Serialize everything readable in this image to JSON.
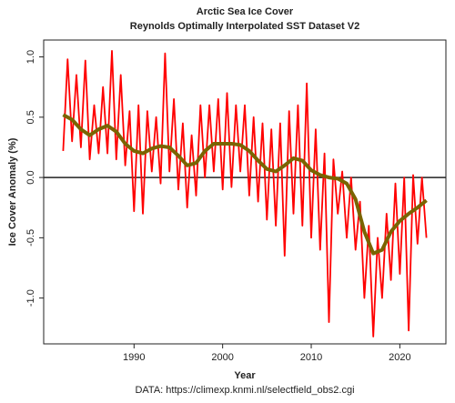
{
  "chart_data": {
    "type": "line",
    "title": "Arctic Sea Ice Cover",
    "subtitle": "Reynolds Optimally Interpolated SST Dataset V2",
    "xlabel": "Year",
    "ylabel": "Ice Cover Anomaly (%)",
    "note": "DATA: https://climexp.knmi.nl/selectfield_obs2.cgi",
    "xlim": [
      1979.8,
      2025.2
    ],
    "ylim": [
      -1.38,
      1.14
    ],
    "xticks": [
      1990,
      2000,
      2010,
      2020
    ],
    "yticks": [
      {
        "value": 1,
        "label": "1.0"
      },
      {
        "value": 0.5,
        "label": "0.5"
      },
      {
        "value": 0,
        "label": "0.0"
      },
      {
        "value": -0.5,
        "label": "-0.5"
      },
      {
        "value": -1,
        "label": "-1.0"
      }
    ],
    "zero_line": 0,
    "series": [
      {
        "color": "#ff0000",
        "x": [
          1982.0,
          1982.5,
          1983.0,
          1983.5,
          1984.0,
          1984.5,
          1985.0,
          1985.5,
          1986.0,
          1986.5,
          1987.0,
          1987.5,
          1988.0,
          1988.5,
          1989.0,
          1989.5,
          1990.0,
          1990.5,
          1991.0,
          1991.5,
          1992.0,
          1992.5,
          1993.0,
          1993.5,
          1994.0,
          1994.5,
          1995.0,
          1995.5,
          1996.0,
          1996.5,
          1997.0,
          1997.5,
          1998.0,
          1998.5,
          1999.0,
          1999.5,
          2000.0,
          2000.5,
          2001.0,
          2001.5,
          2002.0,
          2002.5,
          2003.0,
          2003.5,
          2004.0,
          2004.5,
          2005.0,
          2005.5,
          2006.0,
          2006.5,
          2007.0,
          2007.5,
          2008.0,
          2008.5,
          2009.0,
          2009.5,
          2010.0,
          2010.5,
          2011.0,
          2011.5,
          2012.0,
          2012.5,
          2013.0,
          2013.5,
          2014.0,
          2014.5,
          2015.0,
          2015.5,
          2016.0,
          2016.5,
          2017.0,
          2017.5,
          2018.0,
          2018.5,
          2019.0,
          2019.5,
          2020.0,
          2020.5,
          2021.0,
          2021.5,
          2022.0,
          2022.5,
          2023.0
        ],
        "values": [
          0.22,
          0.98,
          0.3,
          0.85,
          0.25,
          0.97,
          0.15,
          0.6,
          0.2,
          0.75,
          0.2,
          1.05,
          0.15,
          0.85,
          0.1,
          0.55,
          -0.28,
          0.6,
          -0.3,
          0.55,
          0.05,
          0.5,
          -0.05,
          1.03,
          0.05,
          0.65,
          -0.1,
          0.45,
          -0.25,
          0.35,
          -0.15,
          0.6,
          0.0,
          0.6,
          0.05,
          0.65,
          -0.1,
          0.7,
          -0.08,
          0.6,
          0.05,
          0.6,
          -0.15,
          0.5,
          -0.2,
          0.45,
          -0.35,
          0.4,
          -0.4,
          0.45,
          -0.65,
          0.55,
          -0.3,
          0.6,
          -0.4,
          0.78,
          -0.5,
          0.4,
          -0.6,
          0.2,
          -1.2,
          0.15,
          -0.3,
          0.05,
          -0.5,
          0.0,
          -0.6,
          -0.2,
          -1.0,
          -0.4,
          -1.32,
          -0.5,
          -1.0,
          -0.3,
          -0.85,
          -0.05,
          -0.8,
          0.0,
          -1.27,
          0.02,
          -0.55,
          0.0,
          -0.5
        ]
      },
      {
        "color": "#7a6400",
        "x": [
          1982,
          1983,
          1984,
          1985,
          1986,
          1987,
          1988,
          1989,
          1990,
          1991,
          1992,
          1993,
          1994,
          1995,
          1996,
          1997,
          1998,
          1999,
          2000,
          2001,
          2002,
          2003,
          2004,
          2005,
          2006,
          2007,
          2008,
          2009,
          2010,
          2011,
          2012,
          2013,
          2014,
          2015,
          2016,
          2017,
          2018,
          2019,
          2020,
          2021,
          2022,
          2023
        ],
        "values": [
          0.52,
          0.48,
          0.4,
          0.35,
          0.4,
          0.43,
          0.38,
          0.28,
          0.22,
          0.2,
          0.24,
          0.26,
          0.25,
          0.18,
          0.1,
          0.12,
          0.22,
          0.28,
          0.28,
          0.28,
          0.27,
          0.22,
          0.14,
          0.07,
          0.05,
          0.1,
          0.16,
          0.14,
          0.06,
          0.02,
          0.0,
          -0.01,
          -0.05,
          -0.18,
          -0.45,
          -0.63,
          -0.6,
          -0.45,
          -0.36,
          -0.3,
          -0.25,
          -0.19
        ]
      }
    ]
  }
}
